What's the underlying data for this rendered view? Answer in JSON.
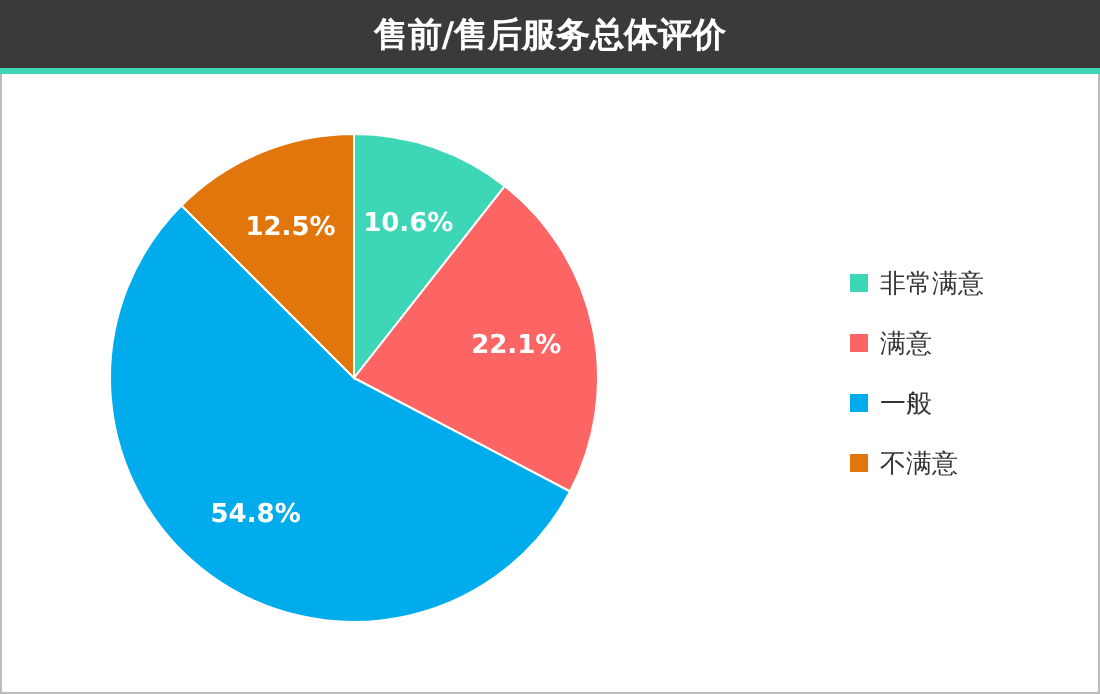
{
  "chart_data": {
    "type": "pie",
    "title": "售前/售后服务总体评价",
    "categories": [
      "非常满意",
      "满意",
      "一般",
      "不满意"
    ],
    "values": [
      10.6,
      22.1,
      54.8,
      12.5
    ],
    "value_labels": [
      "10.6%",
      "22.1%",
      "54.8%",
      "12.5%"
    ],
    "colors": [
      "#3dd6b6",
      "#fd6464",
      "#00acec",
      "#e0760c"
    ],
    "legend": "right"
  }
}
